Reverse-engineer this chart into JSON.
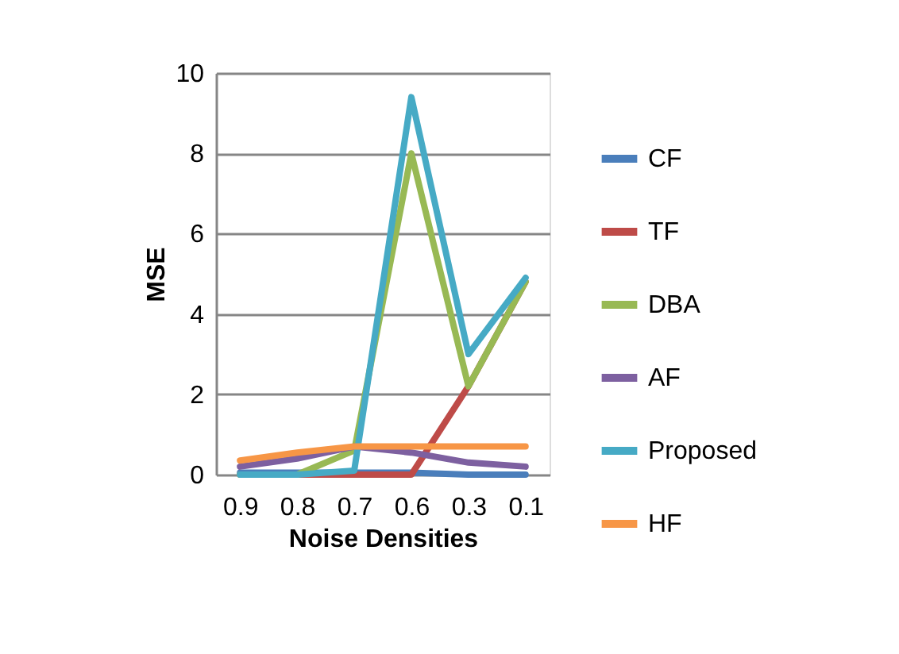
{
  "chart_data": {
    "type": "line",
    "xlabel": "Noise Densities",
    "ylabel": "MSE",
    "categories": [
      "0.9",
      "0.8",
      "0.7",
      "0.6",
      "0.3",
      "0.1"
    ],
    "series": [
      {
        "name": "CF",
        "color": "#4a7ebb",
        "values": [
          0.05,
          0.05,
          0.05,
          0.05,
          0,
          0
        ]
      },
      {
        "name": "TF",
        "color": "#be4b48",
        "values": [
          0,
          0,
          0,
          0,
          2.2,
          4.8
        ]
      },
      {
        "name": "DBA",
        "color": "#98b954",
        "values": [
          0,
          0,
          0.6,
          8.0,
          2.2,
          4.8
        ]
      },
      {
        "name": "AF",
        "color": "#7d60a0",
        "values": [
          0.2,
          0.4,
          0.7,
          0.55,
          0.3,
          0.2
        ]
      },
      {
        "name": "Proposed",
        "color": "#46aac5",
        "values": [
          0,
          0,
          0.1,
          9.4,
          3.0,
          4.9
        ]
      },
      {
        "name": "HF",
        "color": "#f79646",
        "values": [
          0.35,
          0.55,
          0.7,
          0.7,
          0.7,
          0.7
        ]
      }
    ],
    "ylim": [
      0,
      10
    ],
    "yticks": [
      0,
      2,
      4,
      6,
      8,
      10
    ],
    "grid": "y",
    "legend": "right",
    "marker": "none",
    "line_style": "solid"
  }
}
